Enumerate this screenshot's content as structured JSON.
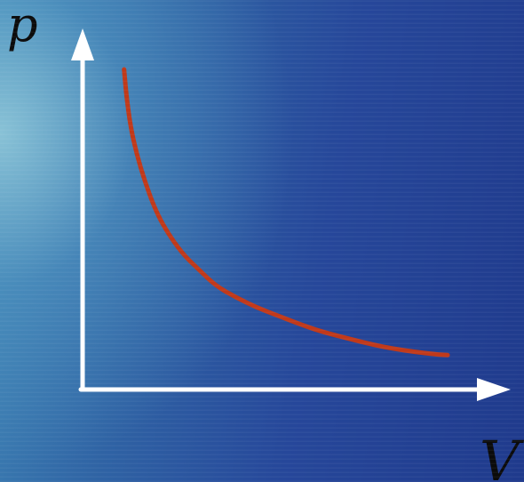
{
  "chart_data": {
    "type": "line",
    "title": "",
    "xlabel": "V",
    "ylabel": "p",
    "grid": false,
    "legend": "none",
    "series": [
      {
        "color": "#c0391a",
        "x": [
          1.0,
          1.05,
          1.15,
          1.3,
          1.5,
          1.75,
          2.0,
          2.4,
          2.8,
          3.2,
          3.7,
          4.2,
          4.7,
          5.2,
          5.6,
          6.0,
          6.5,
          7.0,
          7.5,
          8.0,
          8.5,
          8.8
        ],
        "y": [
          8.0,
          7.4,
          6.6,
          5.9,
          5.2,
          4.5,
          4.0,
          3.4,
          3.0,
          2.6,
          2.3,
          2.05,
          1.85,
          1.65,
          1.5,
          1.38,
          1.25,
          1.12,
          1.02,
          0.94,
          0.88,
          0.86
        ]
      }
    ],
    "xlim": [
      0,
      10
    ],
    "ylim": [
      0,
      8.8
    ],
    "colors": {
      "axis": "#ffffff",
      "curve": "#c0391a",
      "label": "#0b0b0b"
    }
  }
}
